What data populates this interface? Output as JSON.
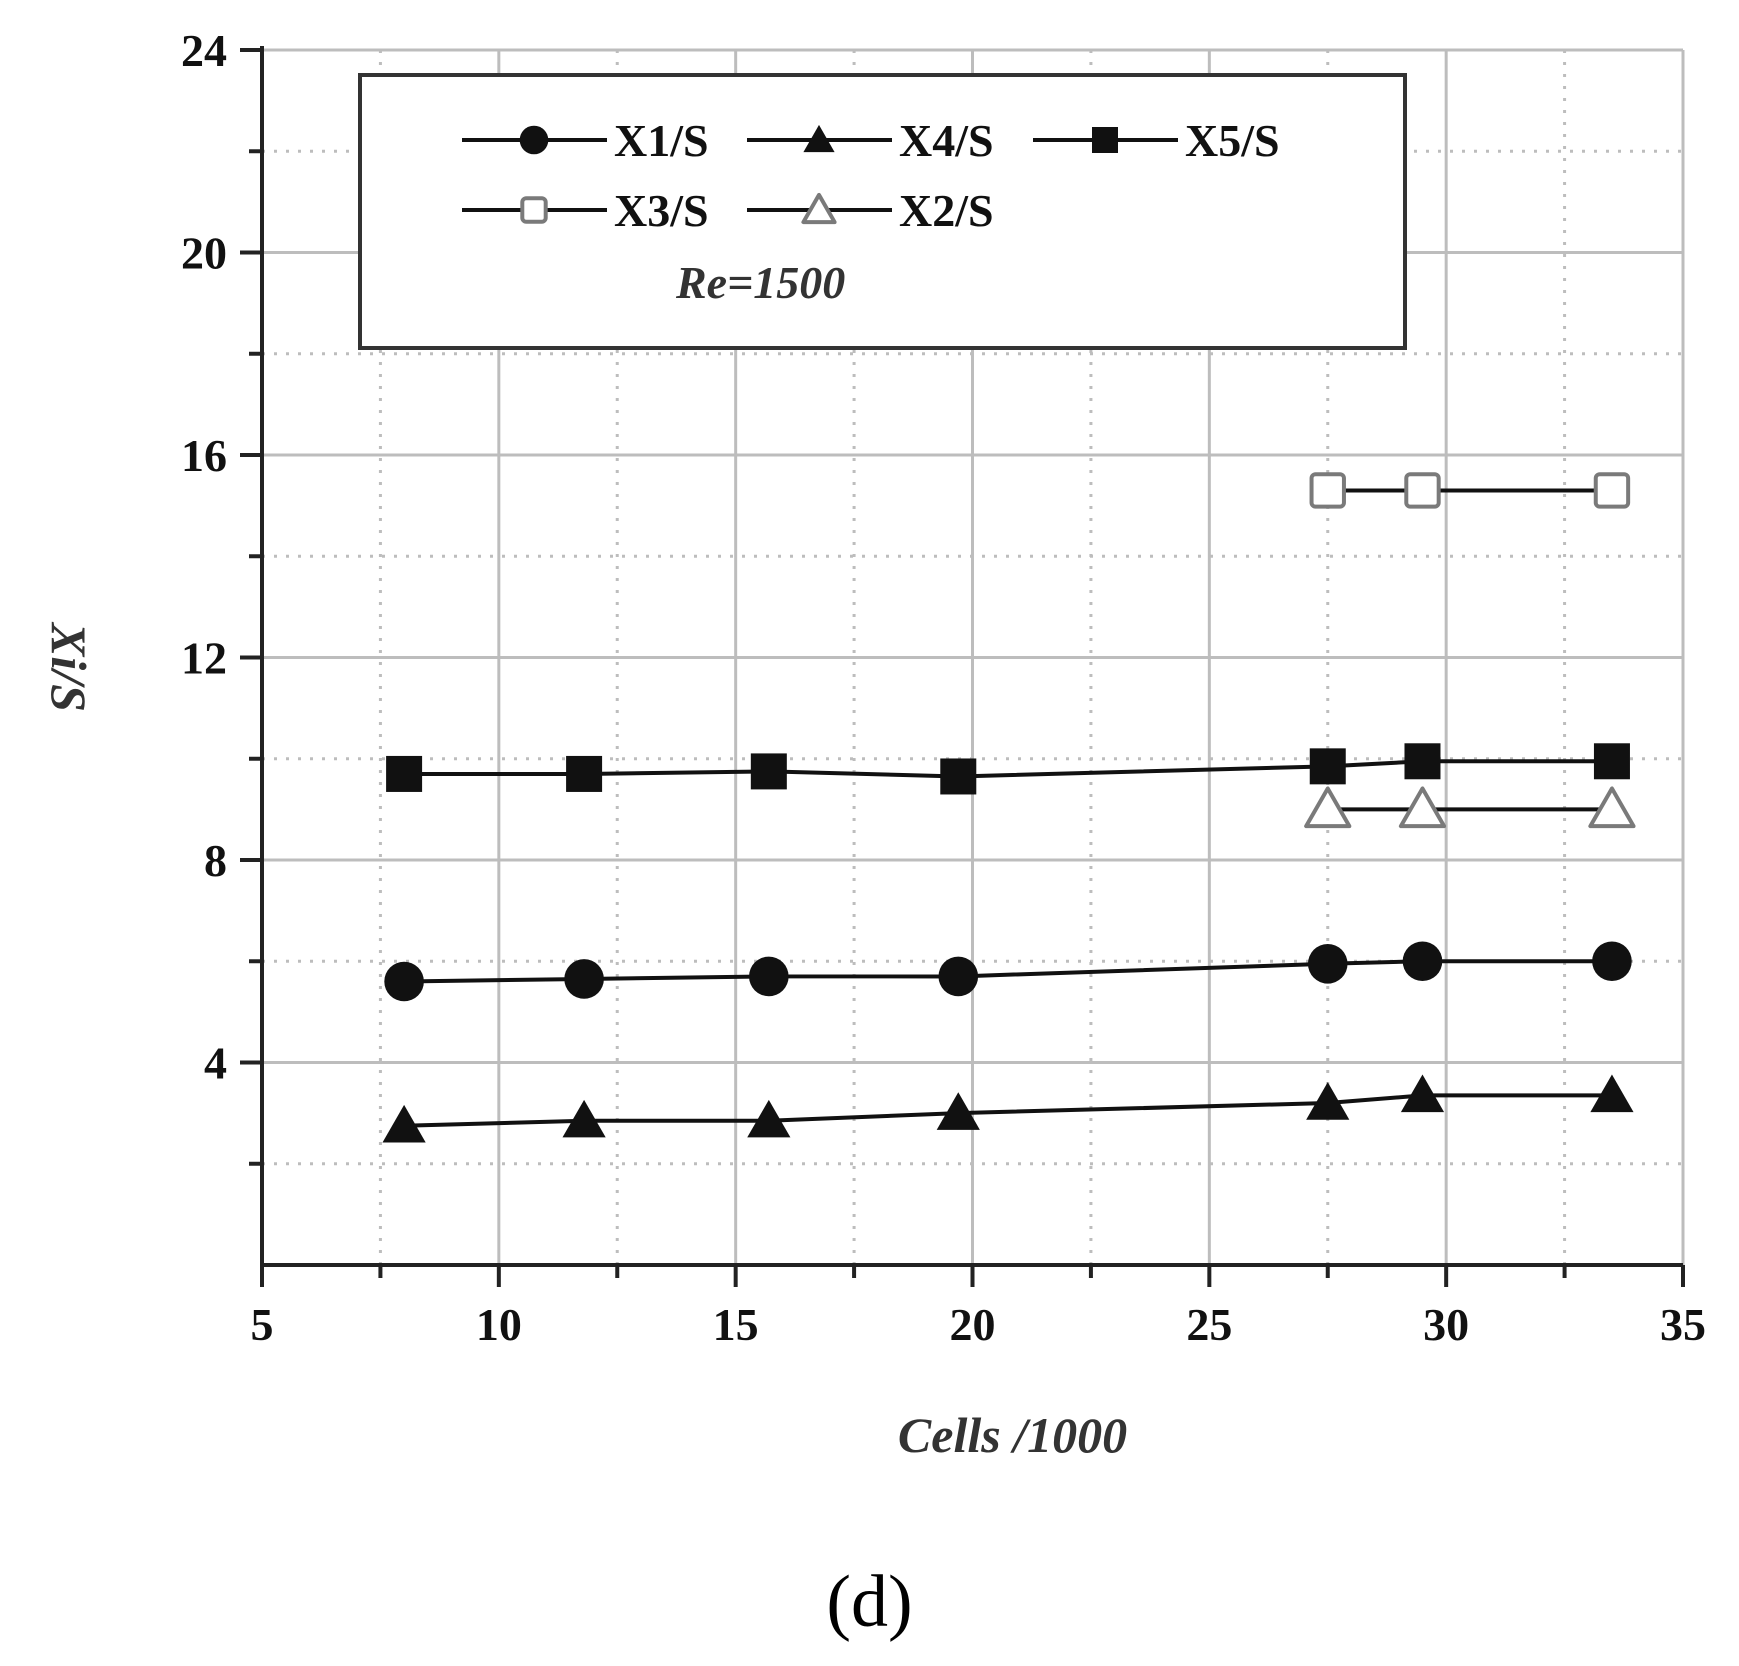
{
  "caption": "(d)",
  "colors": {
    "axis": "#222222",
    "grid_major": "#bdbdbd",
    "grid_minor": "#bdbdbd",
    "series": "#111111",
    "hollow_marker": "#7a7a7a"
  },
  "chart_data": {
    "type": "line",
    "title": "",
    "xlabel": "Cells /1000",
    "ylabel": "Xi/S",
    "xlim": [
      5,
      35
    ],
    "ylim": [
      0,
      24
    ],
    "x_ticks": [
      5,
      10,
      15,
      20,
      25,
      30,
      35
    ],
    "y_ticks": [
      4,
      8,
      12,
      16,
      20,
      24
    ],
    "x_tick_labels": [
      "5",
      "10",
      "15",
      "20",
      "25",
      "30",
      "35"
    ],
    "y_tick_labels": [
      "4",
      "8",
      "12",
      "16",
      "20",
      "24"
    ],
    "grid": true,
    "legend_placement": "top",
    "annotation": "Re=1500",
    "series": [
      {
        "name": "X1/S",
        "marker": "circle-filled",
        "x": [
          8,
          11.8,
          15.7,
          19.7,
          27.5,
          29.5,
          33.5
        ],
        "y": [
          5.6,
          5.65,
          5.7,
          5.7,
          5.95,
          6.0,
          6.0
        ]
      },
      {
        "name": "X4/S",
        "marker": "triangle-filled",
        "x": [
          8,
          11.8,
          15.7,
          19.7,
          27.5,
          29.5,
          33.5
        ],
        "y": [
          2.75,
          2.85,
          2.85,
          3.0,
          3.2,
          3.35,
          3.35
        ]
      },
      {
        "name": "X5/S",
        "marker": "square-filled",
        "x": [
          8,
          11.8,
          15.7,
          19.7,
          27.5,
          29.5,
          33.5
        ],
        "y": [
          9.7,
          9.7,
          9.75,
          9.65,
          9.85,
          9.95,
          9.95
        ]
      },
      {
        "name": "X3/S",
        "marker": "square-hollow",
        "x": [
          27.5,
          29.5,
          33.5
        ],
        "y": [
          15.3,
          15.3,
          15.3
        ]
      },
      {
        "name": "X2/S",
        "marker": "triangle-hollow",
        "x": [
          27.5,
          29.5,
          33.5
        ],
        "y": [
          9.0,
          9.0,
          9.0
        ]
      }
    ]
  }
}
